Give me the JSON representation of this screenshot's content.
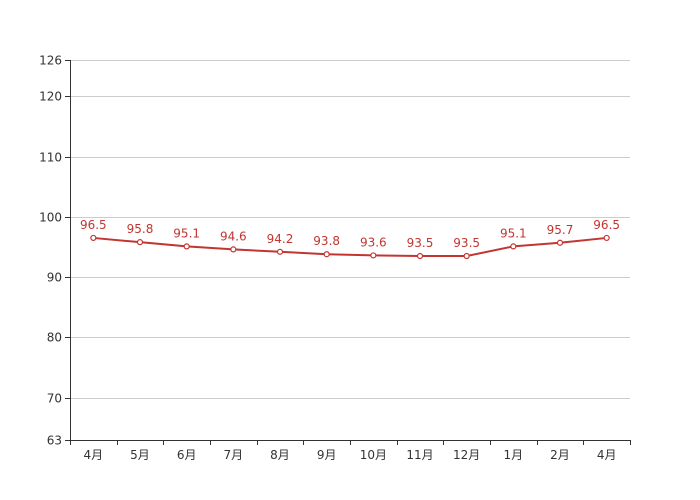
{
  "chart_data": {
    "type": "line",
    "title": "",
    "xlabel": "",
    "ylabel": "",
    "categories": [
      "4月",
      "5月",
      "6月",
      "7月",
      "8月",
      "9月",
      "10月",
      "11月",
      "12月",
      "1月",
      "2月",
      "4月"
    ],
    "series": [
      {
        "values": [
          96.5,
          95.8,
          95.1,
          94.6,
          94.2,
          93.8,
          93.6,
          93.5,
          93.5,
          95.1,
          95.7,
          96.5
        ],
        "labels": [
          "96.5",
          "95.8",
          "95.1",
          "94.6",
          "94.2",
          "93.8",
          "93.6",
          "93.5",
          "93.5",
          "95.1",
          "95.7",
          "96.5"
        ],
        "color": "#c23531"
      }
    ],
    "ylim": [
      63,
      126
    ],
    "yticks": [
      63,
      70,
      80,
      90,
      100,
      110,
      120,
      126
    ],
    "ytick_labels": [
      "63",
      "70",
      "80",
      "90",
      "100",
      "110",
      "120",
      "126"
    ],
    "grid": true,
    "legend": "none",
    "colors": {
      "axis": "#333333",
      "grid": "#cccccc",
      "line": "#c23531"
    }
  }
}
